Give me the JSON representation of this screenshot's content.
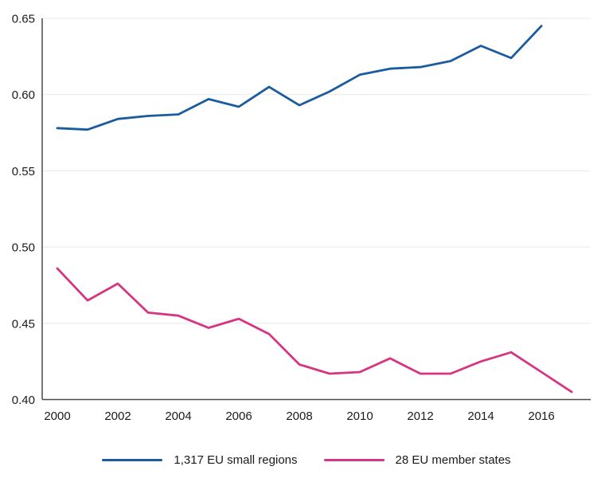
{
  "chart_data": {
    "type": "line",
    "title": "",
    "xlabel": "",
    "ylabel": "",
    "grid": "horizontal-only",
    "legend_position": "bottom-center",
    "xlim": [
      1999.5,
      2017.63
    ],
    "ylim": [
      0.4,
      0.65
    ],
    "x_ticks": [
      2000,
      2002,
      2004,
      2006,
      2008,
      2010,
      2012,
      2014,
      2016
    ],
    "x_tick_labels": [
      "2000",
      "2002",
      "2004",
      "2006",
      "2008",
      "2010",
      "2012",
      "2014",
      "2016"
    ],
    "y_ticks": [
      0.4,
      0.45,
      0.5,
      0.55,
      0.6,
      0.65
    ],
    "y_tick_labels": [
      "0.40",
      "0.45",
      "0.50",
      "0.55",
      "0.60",
      "0.65"
    ],
    "axis_color": "#4a4a4a",
    "grid_color": "#e9e9e9",
    "tick_label_color": "#1a1a1a",
    "series": [
      {
        "name": "1,317 EU small regions",
        "color": "#1b5c9e",
        "x": [
          2000,
          2001,
          2002,
          2003,
          2004,
          2005,
          2006,
          2007,
          2008,
          2009,
          2010,
          2011,
          2012,
          2013,
          2014,
          2015,
          2016
        ],
        "values": [
          0.578,
          0.577,
          0.584,
          0.586,
          0.587,
          0.597,
          0.592,
          0.605,
          0.593,
          0.602,
          0.613,
          0.617,
          0.618,
          0.622,
          0.632,
          0.624,
          0.645
        ]
      },
      {
        "name": "28 EU member states",
        "color": "#d63583",
        "x": [
          2000,
          2001,
          2002,
          2003,
          2004,
          2005,
          2006,
          2007,
          2008,
          2009,
          2010,
          2011,
          2012,
          2013,
          2014,
          2015,
          2016,
          2017
        ],
        "values": [
          0.486,
          0.465,
          0.476,
          0.457,
          0.455,
          0.447,
          0.453,
          0.443,
          0.423,
          0.417,
          0.418,
          0.427,
          0.417,
          0.417,
          0.425,
          0.431,
          0.418,
          0.405
        ]
      }
    ]
  },
  "legend": {
    "items": [
      {
        "label": "1,317 EU small regions",
        "color": "#1b5c9e"
      },
      {
        "label": "28 EU member states",
        "color": "#d63583"
      }
    ]
  }
}
